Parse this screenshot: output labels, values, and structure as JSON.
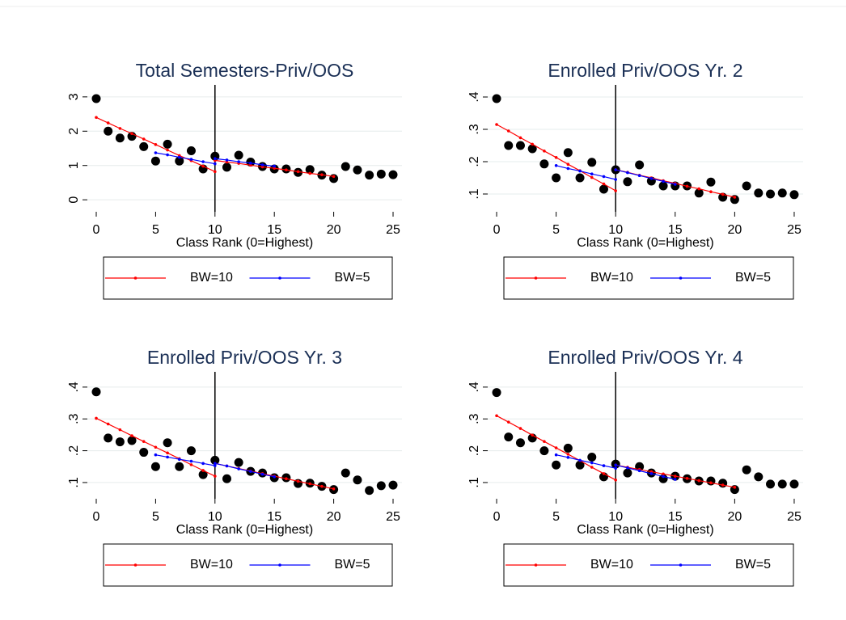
{
  "chart_data": [
    {
      "type": "scatter",
      "title": "Total Semesters-Priv/OOS",
      "xlabel": "Class Rank (0=Highest)",
      "xlim": [
        -0.75,
        25.75
      ],
      "xticks": [
        0,
        5,
        10,
        15,
        20,
        25
      ],
      "ylim": [
        -0.35,
        3.35
      ],
      "yticks": [
        0,
        1,
        2,
        3
      ],
      "grid": true,
      "vline": 10,
      "points": {
        "color": "#000000",
        "x": [
          0,
          1,
          2,
          3,
          4,
          5,
          6,
          7,
          8,
          9,
          10,
          11,
          12,
          13,
          14,
          15,
          16,
          17,
          18,
          19,
          20,
          21,
          22,
          23,
          24,
          25
        ],
        "values": [
          2.95,
          2.0,
          1.8,
          1.85,
          1.55,
          1.13,
          1.62,
          1.13,
          1.43,
          0.9,
          1.27,
          0.95,
          1.3,
          1.1,
          0.97,
          0.9,
          0.9,
          0.8,
          0.88,
          0.72,
          0.62,
          0.97,
          0.87,
          0.72,
          0.75,
          0.73
        ]
      },
      "series": [
        {
          "name": "BW=10",
          "color": "#ff0000",
          "x": [
            0,
            1,
            2,
            3,
            4,
            5,
            6,
            7,
            8,
            9,
            10,
            10,
            10,
            11,
            12,
            13,
            14,
            15,
            16,
            17,
            18,
            19,
            20
          ],
          "values": [
            2.4,
            2.24,
            2.08,
            1.93,
            1.77,
            1.61,
            1.45,
            1.29,
            1.14,
            0.98,
            0.82,
            null,
            1.15,
            1.1,
            1.06,
            1.01,
            0.96,
            0.92,
            0.87,
            0.82,
            0.77,
            0.73,
            0.68
          ]
        },
        {
          "name": "BW=5",
          "color": "#0000ff",
          "x": [
            5,
            6,
            7,
            8,
            9,
            10,
            10,
            10,
            11,
            12,
            13,
            14,
            15
          ],
          "values": [
            1.37,
            1.31,
            1.24,
            1.18,
            1.11,
            1.05,
            null,
            1.2,
            1.16,
            1.11,
            1.07,
            1.02,
            0.98
          ]
        }
      ]
    },
    {
      "type": "scatter",
      "title": "Enrolled Priv/OOS Yr. 2",
      "xlabel": "Class Rank (0=Highest)",
      "xlim": [
        -0.75,
        25.75
      ],
      "xticks": [
        0,
        5,
        10,
        15,
        20,
        25
      ],
      "ylim": [
        0.045,
        0.4375
      ],
      "yticks": [
        {
          "value": 0.1,
          "label": ".1"
        },
        {
          "value": 0.2,
          "label": ".2"
        },
        {
          "value": 0.3,
          "label": ".3"
        },
        {
          "value": 0.4,
          "label": ".4"
        }
      ],
      "grid": true,
      "vline": 10,
      "points": {
        "color": "#000000",
        "x": [
          0,
          1,
          2,
          3,
          4,
          5,
          6,
          7,
          8,
          9,
          10,
          11,
          12,
          13,
          14,
          15,
          16,
          17,
          18,
          19,
          20,
          21,
          22,
          23,
          24,
          25
        ],
        "values": [
          0.395,
          0.25,
          0.25,
          0.24,
          0.193,
          0.15,
          0.228,
          0.15,
          0.198,
          0.115,
          0.175,
          0.138,
          0.19,
          0.14,
          0.125,
          0.125,
          0.125,
          0.103,
          0.137,
          0.09,
          0.083,
          0.125,
          0.103,
          0.1,
          0.103,
          0.098
        ]
      },
      "series": [
        {
          "name": "BW=10",
          "color": "#ff0000",
          "x": [
            0,
            1,
            2,
            3,
            4,
            5,
            6,
            7,
            8,
            9,
            10,
            10,
            10,
            11,
            12,
            13,
            14,
            15,
            16,
            17,
            18,
            19,
            20
          ],
          "values": [
            0.315,
            0.295,
            0.274,
            0.254,
            0.233,
            0.213,
            0.192,
            0.172,
            0.151,
            0.131,
            0.11,
            null,
            0.175,
            0.167,
            0.158,
            0.15,
            0.141,
            0.133,
            0.124,
            0.116,
            0.107,
            0.099,
            0.09
          ]
        },
        {
          "name": "BW=5",
          "color": "#0000ff",
          "x": [
            5,
            6,
            7,
            8,
            9,
            10,
            10,
            10,
            11,
            12,
            13,
            14,
            15
          ],
          "values": [
            0.188,
            0.179,
            0.171,
            0.162,
            0.154,
            0.145,
            null,
            0.175,
            0.166,
            0.157,
            0.148,
            0.139,
            0.13
          ]
        }
      ]
    },
    {
      "type": "scatter",
      "title": "Enrolled Priv/OOS Yr. 3",
      "xlabel": "Class Rank (0=Highest)",
      "xlim": [
        -0.75,
        25.75
      ],
      "xticks": [
        0,
        5,
        10,
        15,
        20,
        25
      ],
      "ylim": [
        0.049,
        0.448
      ],
      "yticks": [
        {
          "value": 0.1,
          "label": ".1"
        },
        {
          "value": 0.2,
          "label": ".2"
        },
        {
          "value": 0.3,
          "label": ".3"
        },
        {
          "value": 0.4,
          "label": ".4"
        }
      ],
      "grid": true,
      "vline": 10,
      "points": {
        "color": "#000000",
        "x": [
          0,
          1,
          2,
          3,
          4,
          5,
          6,
          7,
          8,
          9,
          10,
          11,
          12,
          13,
          14,
          15,
          16,
          17,
          18,
          19,
          20,
          21,
          22,
          23,
          24,
          25
        ],
        "values": [
          0.385,
          0.24,
          0.228,
          0.232,
          0.195,
          0.15,
          0.225,
          0.15,
          0.2,
          0.125,
          0.17,
          0.112,
          0.163,
          0.135,
          0.13,
          0.115,
          0.115,
          0.097,
          0.098,
          0.088,
          0.078,
          0.13,
          0.108,
          0.075,
          0.09,
          0.092
        ]
      },
      "series": [
        {
          "name": "BW=10",
          "color": "#ff0000",
          "x": [
            0,
            1,
            2,
            3,
            4,
            5,
            6,
            7,
            8,
            9,
            10,
            10,
            10,
            11,
            12,
            13,
            14,
            15,
            16,
            17,
            18,
            19,
            20
          ],
          "values": [
            0.302,
            0.284,
            0.266,
            0.247,
            0.229,
            0.211,
            0.193,
            0.175,
            0.156,
            0.138,
            0.12,
            null,
            0.16,
            0.152,
            0.144,
            0.136,
            0.128,
            0.12,
            0.112,
            0.104,
            0.096,
            0.088,
            0.08
          ]
        },
        {
          "name": "BW=5",
          "color": "#0000ff",
          "x": [
            5,
            6,
            7,
            8,
            9,
            10,
            10,
            10,
            11,
            12,
            13,
            14,
            15
          ],
          "values": [
            0.187,
            0.18,
            0.173,
            0.167,
            0.16,
            0.153,
            null,
            0.16,
            0.152,
            0.143,
            0.135,
            0.126,
            0.118
          ]
        }
      ]
    },
    {
      "type": "scatter",
      "title": "Enrolled Priv/OOS Yr. 4",
      "xlabel": "Class Rank (0=Highest)",
      "xlim": [
        -0.75,
        25.75
      ],
      "xticks": [
        0,
        5,
        10,
        15,
        20,
        25
      ],
      "ylim": [
        0.049,
        0.448
      ],
      "yticks": [
        {
          "value": 0.1,
          "label": ".1"
        },
        {
          "value": 0.2,
          "label": ".2"
        },
        {
          "value": 0.3,
          "label": ".3"
        },
        {
          "value": 0.4,
          "label": ".4"
        }
      ],
      "grid": true,
      "vline": 10,
      "points": {
        "color": "#000000",
        "x": [
          0,
          1,
          2,
          3,
          4,
          5,
          6,
          7,
          8,
          9,
          10,
          11,
          12,
          13,
          14,
          15,
          16,
          17,
          18,
          19,
          20,
          21,
          22,
          23,
          24,
          25
        ],
        "values": [
          0.383,
          0.243,
          0.225,
          0.24,
          0.2,
          0.155,
          0.208,
          0.155,
          0.18,
          0.118,
          0.158,
          0.13,
          0.15,
          0.13,
          0.112,
          0.12,
          0.112,
          0.105,
          0.105,
          0.098,
          0.078,
          0.14,
          0.118,
          0.095,
          0.095,
          0.095
        ]
      },
      "series": [
        {
          "name": "BW=10",
          "color": "#ff0000",
          "x": [
            0,
            1,
            2,
            3,
            4,
            5,
            6,
            7,
            8,
            9,
            10,
            10,
            10,
            11,
            12,
            13,
            14,
            15,
            16,
            17,
            18,
            19,
            20
          ],
          "values": [
            0.31,
            0.29,
            0.27,
            0.249,
            0.229,
            0.209,
            0.189,
            0.169,
            0.148,
            0.128,
            0.108,
            null,
            0.155,
            0.148,
            0.141,
            0.134,
            0.127,
            0.12,
            0.113,
            0.106,
            0.099,
            0.092,
            0.085
          ]
        },
        {
          "name": "BW=5",
          "color": "#0000ff",
          "x": [
            5,
            6,
            7,
            8,
            9,
            10,
            10,
            10,
            11,
            12,
            13,
            14,
            15
          ],
          "values": [
            0.187,
            0.179,
            0.17,
            0.162,
            0.153,
            0.145,
            null,
            0.155,
            0.146,
            0.137,
            0.128,
            0.119,
            0.11
          ]
        }
      ]
    }
  ]
}
